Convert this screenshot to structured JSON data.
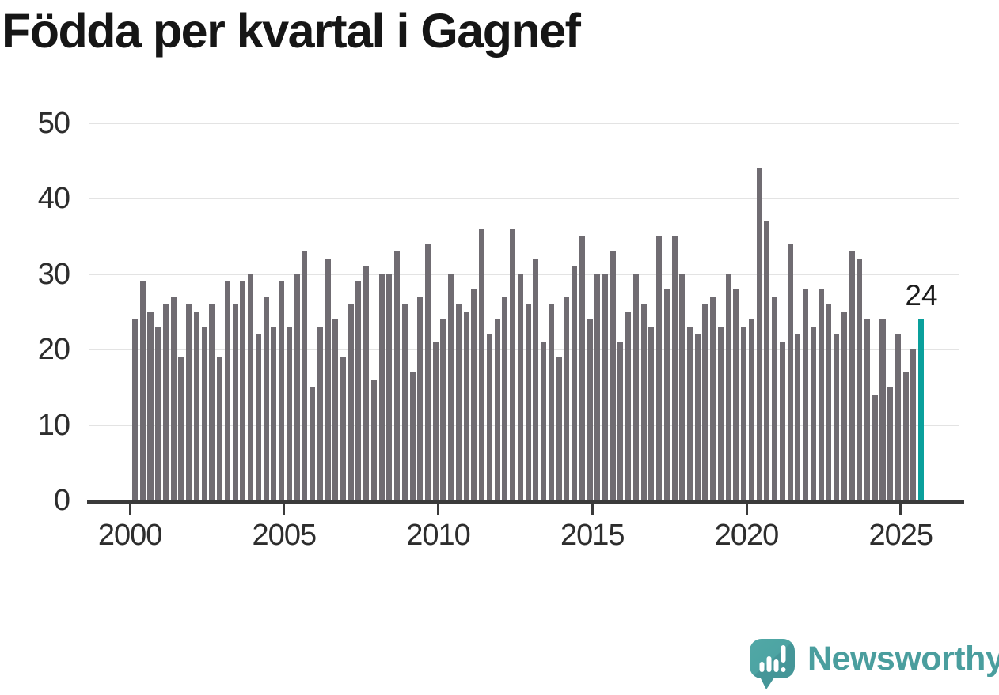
{
  "title": "Födda per kvartal i Gagnef",
  "watermark": {
    "brand": "Newsworthy"
  },
  "colors": {
    "bar": "#706c72",
    "highlight": "#0aa09c",
    "brand_teal": "#4a9e9e",
    "axis": "#3a3a3a",
    "gridline": "#e3e3e3",
    "axis_text": "#2d2d2d"
  },
  "chart_data": {
    "type": "bar",
    "title": "Födda per kvartal i Gagnef",
    "frequency": "quarterly",
    "x_start": "2000-Q1",
    "x_end": "2025-Q3",
    "x_ticks": [
      2000,
      2005,
      2010,
      2015,
      2020,
      2025
    ],
    "y_ticks": [
      0,
      10,
      20,
      30,
      40,
      50
    ],
    "ylim": [
      0,
      50
    ],
    "grid": true,
    "legend": false,
    "series": [
      {
        "name": "Födda per kvartal",
        "values": [
          24,
          29,
          25,
          23,
          26,
          27,
          19,
          26,
          25,
          23,
          26,
          19,
          29,
          26,
          29,
          30,
          22,
          27,
          23,
          29,
          23,
          30,
          33,
          15,
          23,
          32,
          24,
          19,
          26,
          29,
          31,
          16,
          30,
          30,
          33,
          26,
          17,
          27,
          34,
          21,
          24,
          30,
          26,
          25,
          28,
          36,
          22,
          24,
          27,
          36,
          30,
          26,
          32,
          21,
          26,
          19,
          27,
          31,
          35,
          24,
          30,
          30,
          33,
          21,
          25,
          30,
          26,
          23,
          35,
          28,
          35,
          30,
          23,
          22,
          26,
          27,
          23,
          30,
          28,
          23,
          24,
          44,
          37,
          27,
          21,
          34,
          22,
          28,
          23,
          28,
          26,
          22,
          25,
          33,
          32,
          24,
          14,
          24,
          15,
          22,
          17,
          20,
          24
        ]
      }
    ],
    "highlight": {
      "index": 102,
      "quarter": "2025-Q3",
      "value": 24,
      "label": "24"
    }
  }
}
